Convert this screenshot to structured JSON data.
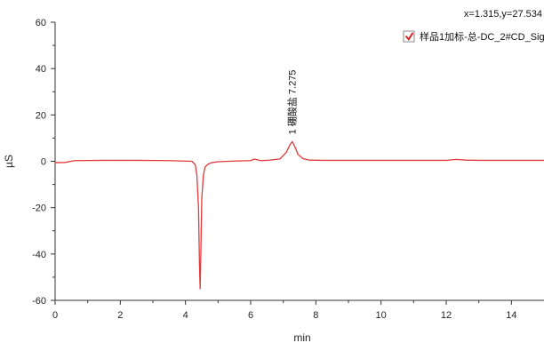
{
  "readout": "x=1.315,y=27.534",
  "legend": {
    "checked": true,
    "label": "样品1加标-总-DC_2#CD_Signal"
  },
  "chart_data": {
    "type": "line",
    "xlabel": "min",
    "ylabel": "µS",
    "xlim": [
      0,
      15
    ],
    "ylim": [
      -60,
      60
    ],
    "x_ticks": [
      0,
      2,
      4,
      6,
      8,
      10,
      12,
      14
    ],
    "y_ticks": [
      60,
      40,
      20,
      0,
      -20,
      -40,
      -60
    ],
    "grid": false,
    "legend_position": "top-right",
    "series": [
      {
        "name": "样品1加标-总-DC_2#CD_Signal",
        "color": "#e23a3a",
        "x": [
          0,
          0.3,
          0.6,
          1.5,
          2.5,
          3.5,
          4.2,
          4.3,
          4.35,
          4.4,
          4.43,
          4.45,
          4.47,
          4.5,
          4.55,
          4.6,
          4.7,
          4.8,
          5.0,
          5.5,
          6.0,
          6.1,
          6.2,
          6.3,
          6.5,
          6.9,
          7.1,
          7.2,
          7.275,
          7.35,
          7.45,
          7.6,
          7.8,
          8.2,
          9.0,
          10.0,
          11.0,
          12.0,
          12.3,
          12.6,
          13.0,
          14.0,
          15.0
        ],
        "y": [
          -0.6,
          -0.5,
          0.3,
          0.4,
          0.4,
          0.3,
          0.0,
          -1.5,
          -6,
          -20,
          -45,
          -55,
          -40,
          -16,
          -6,
          -2.5,
          -1.2,
          -0.6,
          -0.2,
          0.1,
          0.3,
          0.9,
          0.7,
          0.3,
          0.4,
          1.0,
          4.0,
          7.0,
          8.5,
          6.5,
          3.0,
          1.2,
          0.5,
          0.4,
          0.4,
          0.4,
          0.4,
          0.4,
          0.8,
          0.5,
          0.4,
          0.4,
          0.4
        ]
      }
    ],
    "annotations": [
      {
        "x": 7.275,
        "y": 8.5,
        "text": "1  硼酸盐  7.275"
      }
    ]
  }
}
